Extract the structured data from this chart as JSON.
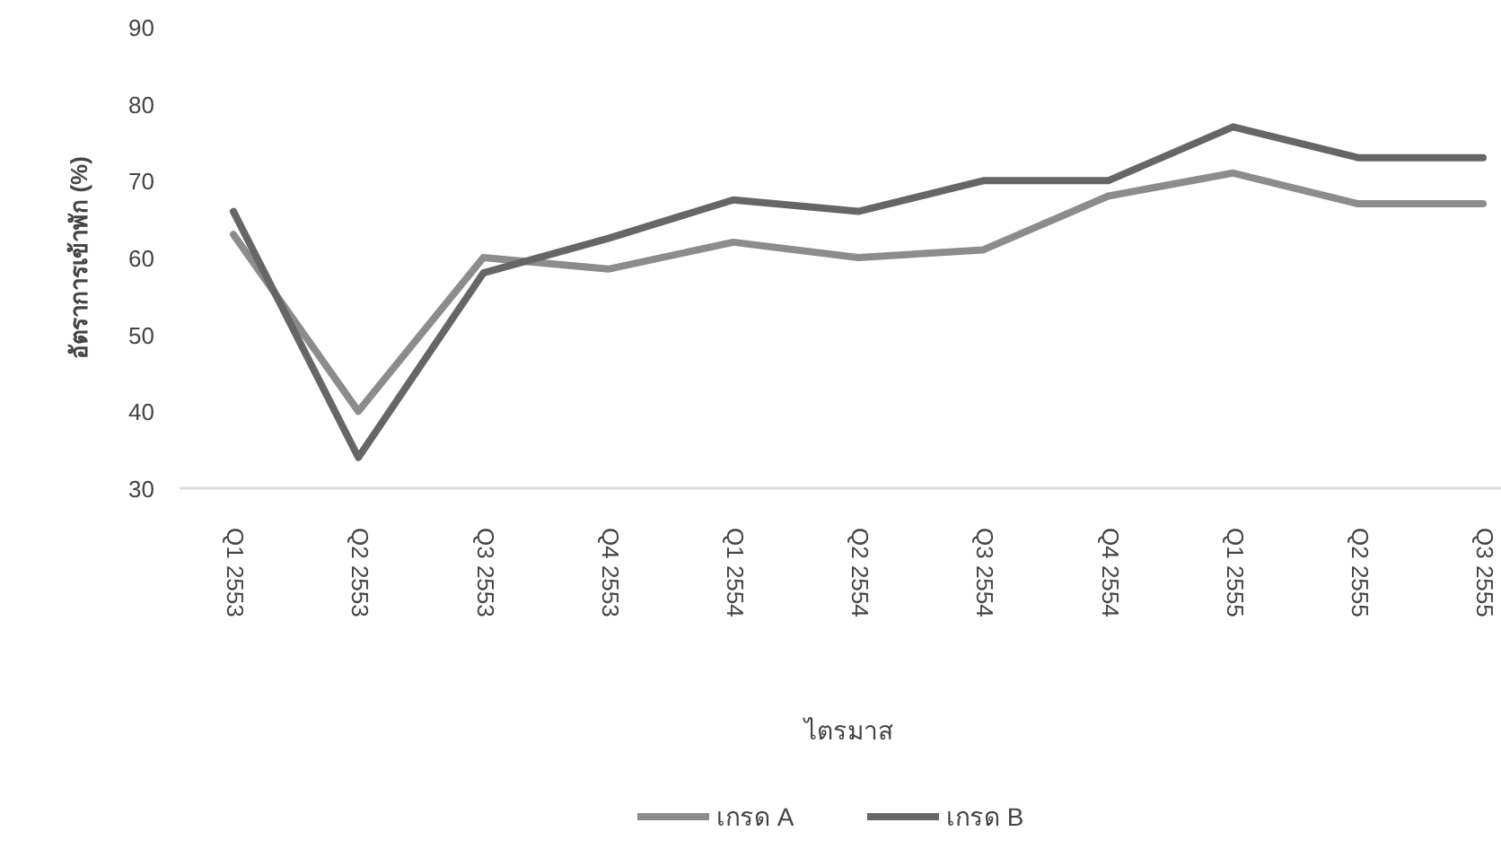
{
  "chart_data": {
    "type": "line",
    "xlabel": "ไตรมาส",
    "ylabel": "อัตราการเข้าพัก (%)",
    "categories": [
      "Q1 2553",
      "Q2 2553",
      "Q3 2553",
      "Q4 2553",
      "Q1 2554",
      "Q2 2554",
      "Q3 2554",
      "Q4 2554",
      "Q1 2555",
      "Q2 2555",
      "Q3 2555"
    ],
    "series": [
      {
        "name": "เกรด A",
        "color": "#8c8c8c",
        "values": [
          63,
          40,
          60,
          58.5,
          62,
          60,
          61,
          68,
          71,
          67,
          67
        ]
      },
      {
        "name": "เกรด B",
        "color": "#666666",
        "values": [
          66,
          34,
          58,
          62.5,
          67.5,
          66,
          70,
          70,
          77,
          73,
          73
        ]
      }
    ],
    "ylim": [
      30,
      90
    ],
    "yticks": [
      30,
      40,
      50,
      60,
      70,
      80,
      90
    ],
    "grid": false,
    "legend": "bottom",
    "marker": "none",
    "line_style": "solid"
  }
}
